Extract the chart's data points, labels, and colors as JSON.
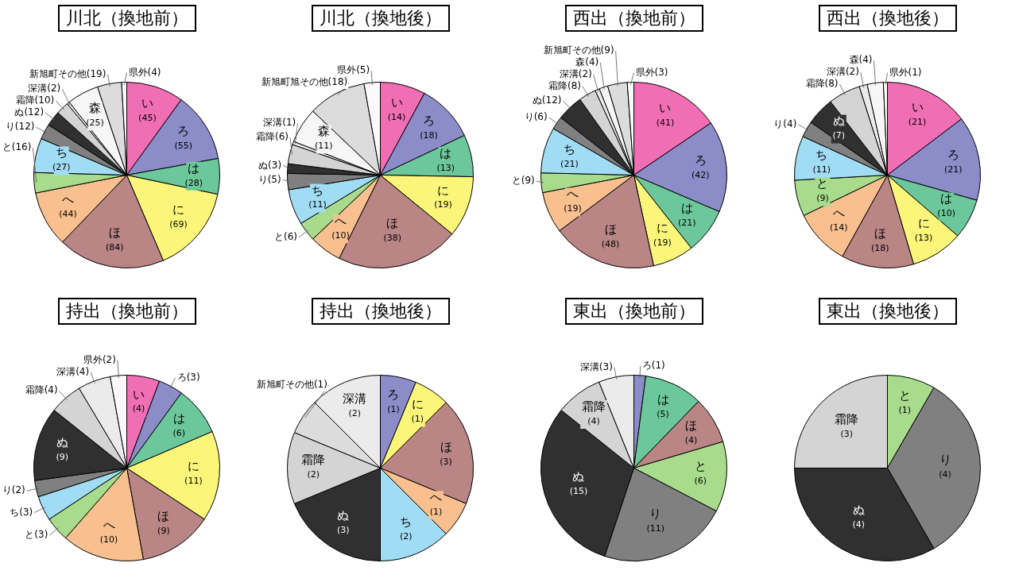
{
  "chart_data": [
    {
      "type": "pie",
      "title": "川北（換地前）",
      "categories": [
        "い",
        "ろ",
        "は",
        "に",
        "ほ",
        "へ",
        "と",
        "ち",
        "り",
        "ぬ",
        "霜降",
        "深溝",
        "森",
        "新旭町その他",
        "県外"
      ],
      "values": [
        45,
        55,
        28,
        69,
        84,
        44,
        16,
        27,
        12,
        12,
        10,
        2,
        25,
        19,
        4
      ],
      "value_labels": [
        "(45)",
        "(55)",
        "(28)",
        "(69)",
        "(84)",
        "(44)",
        "(16)",
        "(27)",
        "(12)",
        "(12)",
        "(10)",
        "(2)",
        "(25)",
        "(19)",
        "(4)"
      ],
      "colors": [
        "#f06eb4",
        "#8c8cc8",
        "#6cc79a",
        "#fbf57a",
        "#b98585",
        "#f8c08e",
        "#a8dc8c",
        "#a0dcf4",
        "#808080",
        "#303030",
        "#d4d4d4",
        "#ebebeb",
        "#f6f6f6",
        "#dcdcdc",
        "#fafafa"
      ]
    },
    {
      "type": "pie",
      "title": "川北（換地後）",
      "categories": [
        "い",
        "ろ",
        "は",
        "に",
        "ほ",
        "へ",
        "と",
        "ち",
        "り",
        "ぬ",
        "霜降",
        "深溝",
        "森",
        "新旭町旭その他",
        "県外"
      ],
      "values": [
        14,
        18,
        13,
        19,
        38,
        10,
        6,
        11,
        5,
        3,
        6,
        1,
        11,
        18,
        5
      ],
      "value_labels": [
        "(14)",
        "(18)",
        "(13)",
        "(19)",
        "(38)",
        "(10)",
        "(6)",
        "(11)",
        "(5)",
        "(3)",
        "(6)",
        "(1)",
        "(11)",
        "(18)",
        "(5)"
      ],
      "colors": [
        "#f06eb4",
        "#8c8cc8",
        "#6cc79a",
        "#fbf57a",
        "#b98585",
        "#f8c08e",
        "#a8dc8c",
        "#a0dcf4",
        "#808080",
        "#303030",
        "#d4d4d4",
        "#ebebeb",
        "#f6f6f6",
        "#dcdcdc",
        "#fafafa"
      ]
    },
    {
      "type": "pie",
      "title": "西出（換地前）",
      "categories": [
        "い",
        "ろ",
        "は",
        "に",
        "ほ",
        "へ",
        "と",
        "ち",
        "り",
        "ぬ",
        "霜降",
        "深溝",
        "森",
        "新旭町その他",
        "県外"
      ],
      "values": [
        41,
        42,
        21,
        19,
        48,
        19,
        9,
        21,
        6,
        12,
        8,
        2,
        4,
        9,
        3
      ],
      "value_labels": [
        "(41)",
        "(42)",
        "(21)",
        "(19)",
        "(48)",
        "(19)",
        "(9)",
        "(21)",
        "(6)",
        "(12)",
        "(8)",
        "(2)",
        "(4)",
        "(9)",
        "(3)"
      ],
      "colors": [
        "#f06eb4",
        "#8c8cc8",
        "#6cc79a",
        "#fbf57a",
        "#b98585",
        "#f8c08e",
        "#a8dc8c",
        "#a0dcf4",
        "#808080",
        "#303030",
        "#d4d4d4",
        "#ebebeb",
        "#f6f6f6",
        "#dcdcdc",
        "#fafafa"
      ]
    },
    {
      "type": "pie",
      "title": "西出（換地後）",
      "categories": [
        "い",
        "ろ",
        "は",
        "に",
        "ほ",
        "へ",
        "と",
        "ち",
        "り",
        "ぬ",
        "霜降",
        "深溝",
        "森",
        "県外"
      ],
      "values": [
        21,
        21,
        10,
        13,
        18,
        14,
        9,
        11,
        4,
        7,
        8,
        2,
        4,
        1
      ],
      "value_labels": [
        "(21)",
        "(21)",
        "(10)",
        "(13)",
        "(18)",
        "(14)",
        "(9)",
        "(11)",
        "(4)",
        "(7)",
        "(8)",
        "(2)",
        "(4)",
        "(1)"
      ],
      "colors": [
        "#f06eb4",
        "#8c8cc8",
        "#6cc79a",
        "#fbf57a",
        "#b98585",
        "#f8c08e",
        "#a8dc8c",
        "#a0dcf4",
        "#808080",
        "#303030",
        "#d4d4d4",
        "#ebebeb",
        "#f6f6f6",
        "#fafafa"
      ]
    },
    {
      "type": "pie",
      "title": "持出（換地前）",
      "categories": [
        "い",
        "ろ",
        "は",
        "に",
        "ほ",
        "へ",
        "と",
        "ち",
        "り",
        "ぬ",
        "霜降",
        "深溝",
        "県外"
      ],
      "values": [
        4,
        3,
        6,
        11,
        9,
        10,
        3,
        3,
        2,
        9,
        4,
        4,
        2
      ],
      "value_labels": [
        "(4)",
        "(3)",
        "(6)",
        "(11)",
        "(9)",
        "(10)",
        "(3)",
        "(3)",
        "(2)",
        "(9)",
        "(4)",
        "(4)",
        "(2)"
      ],
      "colors": [
        "#f06eb4",
        "#8c8cc8",
        "#6cc79a",
        "#fbf57a",
        "#b98585",
        "#f8c08e",
        "#a8dc8c",
        "#a0dcf4",
        "#808080",
        "#303030",
        "#d4d4d4",
        "#ebebeb",
        "#fafafa"
      ]
    },
    {
      "type": "pie",
      "title": "持出（換地後）",
      "categories": [
        "ろ",
        "に",
        "ほ",
        "へ",
        "ち",
        "ぬ",
        "霜降",
        "新旭町その他",
        "深溝"
      ],
      "values": [
        1,
        1,
        3,
        1,
        2,
        3,
        2,
        1,
        2
      ],
      "value_labels": [
        "(1)",
        "(1)",
        "(3)",
        "(1)",
        "(2)",
        "(3)",
        "(2)",
        "(1)",
        "(2)"
      ],
      "colors": [
        "#8c8cc8",
        "#fbf57a",
        "#b98585",
        "#f8c08e",
        "#a0dcf4",
        "#303030",
        "#d4d4d4",
        "#dcdcdc",
        "#ebebeb"
      ]
    },
    {
      "type": "pie",
      "title": "東出（換地前）",
      "categories": [
        "ろ",
        "は",
        "ほ",
        "と",
        "り",
        "ぬ",
        "霜降",
        "深溝"
      ],
      "values": [
        1,
        5,
        4,
        6,
        11,
        15,
        4,
        3
      ],
      "value_labels": [
        "(1)",
        "(5)",
        "(4)",
        "(6)",
        "(11)",
        "(15)",
        "(4)",
        "(3)"
      ],
      "colors": [
        "#8c8cc8",
        "#6cc79a",
        "#b98585",
        "#a8dc8c",
        "#808080",
        "#303030",
        "#d4d4d4",
        "#ebebeb"
      ]
    },
    {
      "type": "pie",
      "title": "東出（換地後）",
      "categories": [
        "と",
        "り",
        "ぬ",
        "霜降"
      ],
      "values": [
        1,
        4,
        4,
        3
      ],
      "value_labels": [
        "(1)",
        "(4)",
        "(4)",
        "(3)"
      ],
      "colors": [
        "#a8dc8c",
        "#808080",
        "#303030",
        "#d4d4d4"
      ]
    }
  ]
}
